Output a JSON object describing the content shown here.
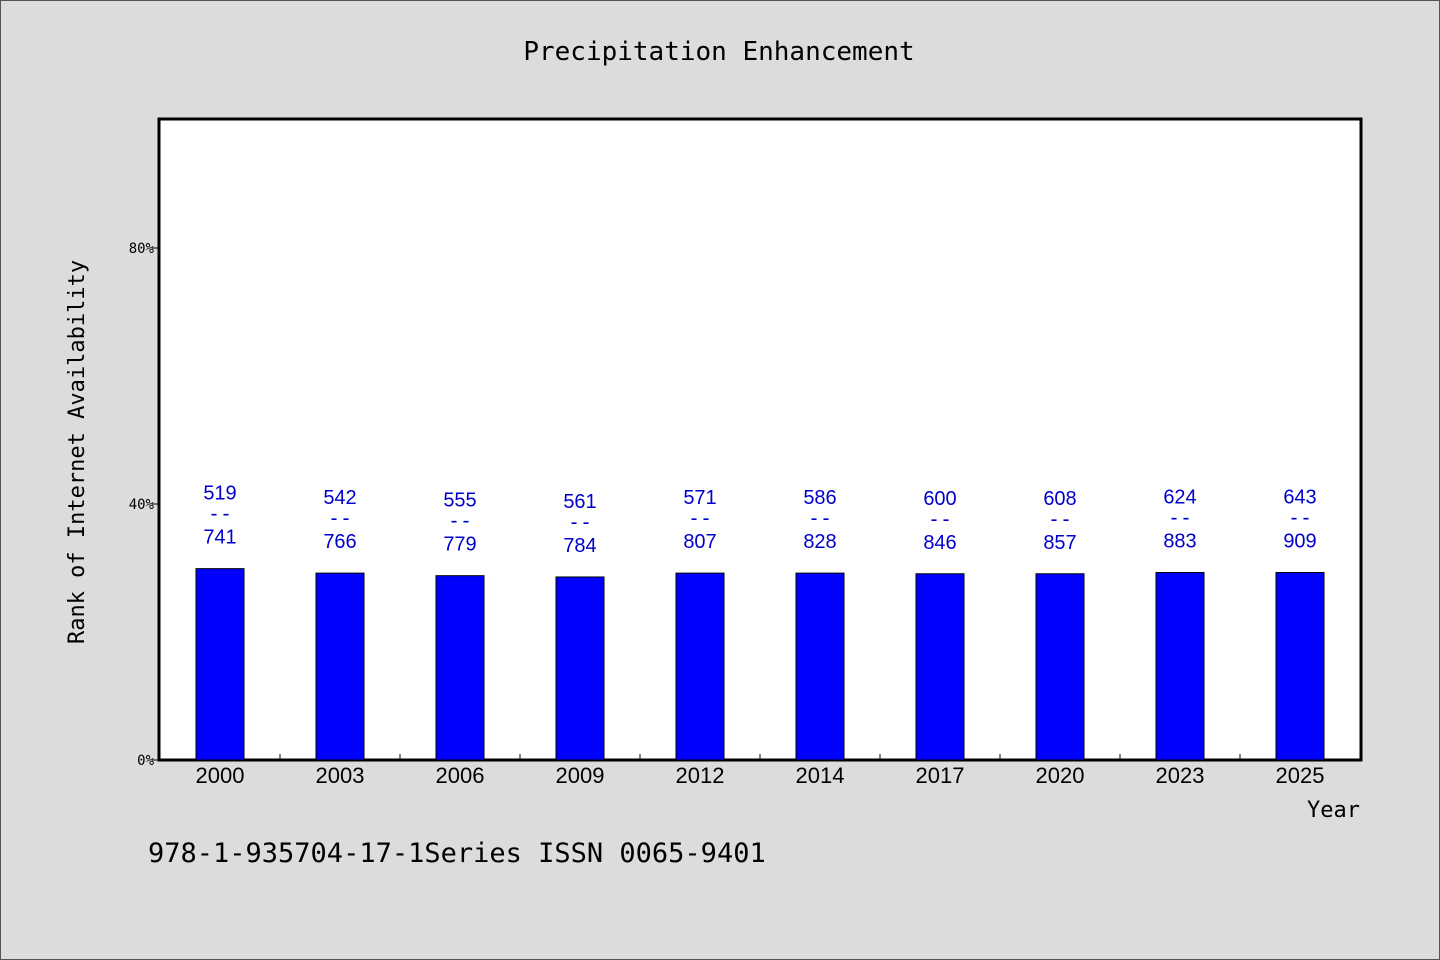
{
  "chart_data": {
    "type": "bar",
    "title": "Precipitation Enhancement",
    "xlabel": "Year",
    "ylabel": "Rank of Internet Availability",
    "categories": [
      "2000",
      "2003",
      "2006",
      "2009",
      "2012",
      "2014",
      "2017",
      "2020",
      "2023",
      "2025"
    ],
    "series": [
      {
        "values": [
          29.9,
          29.2,
          28.8,
          28.6,
          29.2,
          29.2,
          29.1,
          29.1,
          29.3,
          29.3
        ]
      }
    ],
    "annotations": [
      {
        "top": "519",
        "sep": "--",
        "bottom": "741"
      },
      {
        "top": "542",
        "sep": "--",
        "bottom": "766"
      },
      {
        "top": "555",
        "sep": "--",
        "bottom": "779"
      },
      {
        "top": "561",
        "sep": "--",
        "bottom": "784"
      },
      {
        "top": "571",
        "sep": "--",
        "bottom": "807"
      },
      {
        "top": "586",
        "sep": "--",
        "bottom": "828"
      },
      {
        "top": "600",
        "sep": "--",
        "bottom": "846"
      },
      {
        "top": "608",
        "sep": "--",
        "bottom": "857"
      },
      {
        "top": "624",
        "sep": "--",
        "bottom": "883"
      },
      {
        "top": "643",
        "sep": "--",
        "bottom": "909"
      }
    ],
    "ylim": [
      0,
      100
    ],
    "yticks": [
      0,
      40,
      80
    ],
    "ytick_labels": [
      "0%",
      "40%",
      "80%"
    ],
    "grid": false,
    "colors": {
      "bar": "#0000ff",
      "annotation": "#0000cc",
      "plot_bg": "#ffffff",
      "page_bg": "#dcdcdc"
    }
  },
  "footer_text": "978-1-935704-17-1Series ISSN 0065-9401"
}
